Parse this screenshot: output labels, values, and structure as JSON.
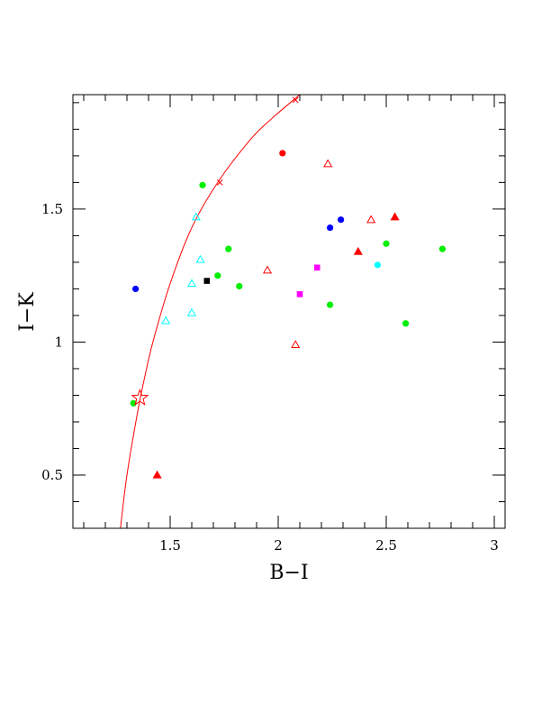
{
  "chart_data": {
    "type": "scatter",
    "xlabel": "B−I",
    "ylabel": "I−K",
    "xlim": [
      1.05,
      3.05
    ],
    "ylim": [
      0.3,
      1.93
    ],
    "x_ticks": [
      {
        "value": 1.5,
        "label": "1.5"
      },
      {
        "value": 2,
        "label": "2"
      },
      {
        "value": 2.5,
        "label": "2.5"
      },
      {
        "value": 3,
        "label": "3"
      }
    ],
    "y_ticks": [
      {
        "value": 0.5,
        "label": "0.5"
      },
      {
        "value": 1,
        "label": "1"
      },
      {
        "value": 1.5,
        "label": "1.5"
      }
    ],
    "x_minor_step": 0.1,
    "y_minor_step": 0.1,
    "grid": false,
    "curve": {
      "color": "#ff0000",
      "points": [
        [
          1.27,
          0.3
        ],
        [
          1.3,
          0.5
        ],
        [
          1.35,
          0.74
        ],
        [
          1.38,
          0.86
        ],
        [
          1.42,
          1.0
        ],
        [
          1.5,
          1.22
        ],
        [
          1.6,
          1.43
        ],
        [
          1.72,
          1.6
        ],
        [
          1.87,
          1.76
        ],
        [
          1.97,
          1.84
        ],
        [
          2.1,
          1.93
        ]
      ],
      "cross_markers": [
        [
          1.73,
          1.6
        ],
        [
          2.08,
          1.91
        ]
      ]
    },
    "points": [
      {
        "x": 1.34,
        "y": 1.2,
        "shape": "circle",
        "color": "#0000ff"
      },
      {
        "x": 2.24,
        "y": 1.43,
        "shape": "circle",
        "color": "#0000ff"
      },
      {
        "x": 2.29,
        "y": 1.46,
        "shape": "circle",
        "color": "#0000ff"
      },
      {
        "x": 2.02,
        "y": 1.71,
        "shape": "circle",
        "color": "#ff0000"
      },
      {
        "x": 1.65,
        "y": 1.59,
        "shape": "circle",
        "color": "#00ee00"
      },
      {
        "x": 1.77,
        "y": 1.35,
        "shape": "circle",
        "color": "#00ee00"
      },
      {
        "x": 1.72,
        "y": 1.25,
        "shape": "circle",
        "color": "#00ee00"
      },
      {
        "x": 1.82,
        "y": 1.21,
        "shape": "circle",
        "color": "#00ee00"
      },
      {
        "x": 2.24,
        "y": 1.14,
        "shape": "circle",
        "color": "#00ee00"
      },
      {
        "x": 2.5,
        "y": 1.37,
        "shape": "circle",
        "color": "#00ee00"
      },
      {
        "x": 2.76,
        "y": 1.35,
        "shape": "circle",
        "color": "#00ee00"
      },
      {
        "x": 2.59,
        "y": 1.07,
        "shape": "circle",
        "color": "#00ee00"
      },
      {
        "x": 1.33,
        "y": 0.77,
        "shape": "circle",
        "color": "#00ee00"
      },
      {
        "x": 2.46,
        "y": 1.29,
        "shape": "circle",
        "color": "#00ffff"
      },
      {
        "x": 1.62,
        "y": 1.47,
        "shape": "triangle-open",
        "color": "#00ffff"
      },
      {
        "x": 1.64,
        "y": 1.31,
        "shape": "triangle-open",
        "color": "#00ffff"
      },
      {
        "x": 1.6,
        "y": 1.22,
        "shape": "triangle-open",
        "color": "#00ffff"
      },
      {
        "x": 1.6,
        "y": 1.11,
        "shape": "triangle-open",
        "color": "#00ffff"
      },
      {
        "x": 1.48,
        "y": 1.08,
        "shape": "triangle-open",
        "color": "#00ffff"
      },
      {
        "x": 2.23,
        "y": 1.67,
        "shape": "triangle-open",
        "color": "#ff0000"
      },
      {
        "x": 2.43,
        "y": 1.46,
        "shape": "triangle-open",
        "color": "#ff0000"
      },
      {
        "x": 1.95,
        "y": 1.27,
        "shape": "triangle-open",
        "color": "#ff0000"
      },
      {
        "x": 2.08,
        "y": 0.99,
        "shape": "triangle-open",
        "color": "#ff0000"
      },
      {
        "x": 2.54,
        "y": 1.47,
        "shape": "triangle",
        "color": "#ff0000"
      },
      {
        "x": 2.37,
        "y": 1.34,
        "shape": "triangle",
        "color": "#ff0000"
      },
      {
        "x": 1.44,
        "y": 0.5,
        "shape": "triangle",
        "color": "#ff0000"
      },
      {
        "x": 1.67,
        "y": 1.23,
        "shape": "square",
        "color": "#000000"
      },
      {
        "x": 2.18,
        "y": 1.28,
        "shape": "square",
        "color": "#ff00ff"
      },
      {
        "x": 2.1,
        "y": 1.18,
        "shape": "square",
        "color": "#ff00ff"
      },
      {
        "x": 1.36,
        "y": 0.79,
        "shape": "star-open",
        "color": "#ff0000"
      }
    ]
  }
}
